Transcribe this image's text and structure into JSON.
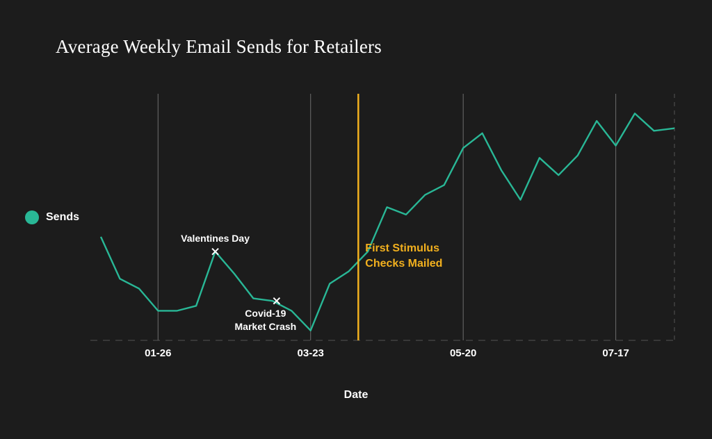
{
  "chart_data": {
    "type": "line",
    "title": "Average Weekly Email Sends for Retailers",
    "xlabel": "Date",
    "ylabel": "",
    "x_ticks": [
      "01-26",
      "03-23",
      "05-20",
      "07-17"
    ],
    "ylim": [
      0,
      100
    ],
    "series": [
      {
        "name": "Sends",
        "color": "#29b796",
        "values": [
          42,
          25,
          21,
          12,
          12,
          14,
          36,
          27,
          17,
          16,
          12,
          4,
          23,
          28,
          36,
          54,
          51,
          59,
          63,
          78,
          84,
          69,
          57,
          74,
          67,
          75,
          89,
          79,
          92,
          85,
          86
        ]
      }
    ],
    "annotations": [
      {
        "label": "Valentines Day",
        "index": 6
      },
      {
        "label_lines": [
          "Covid-19",
          "Market Crash"
        ],
        "index": 9
      }
    ],
    "event_line": {
      "label_lines": [
        "First Stimulus",
        "Checks Mailed"
      ],
      "color": "#f2b01e",
      "position": 13.5
    },
    "legend_position": "left",
    "grid": "vertical"
  }
}
